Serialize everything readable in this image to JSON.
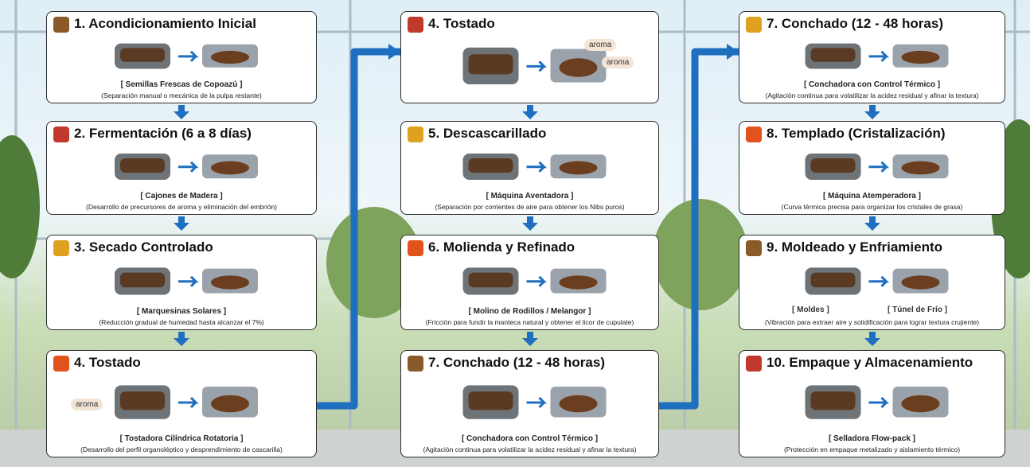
{
  "columns": [
    {
      "steps": [
        {
          "title": "1. Acondicionamiento Inicial",
          "equipment": "[ Semillas Frescas de Copoazú ]",
          "description": "(Separación manual o mecánica de la pulpa restante)"
        },
        {
          "title": "2. Fermentación (6 a 8 días)",
          "equipment": "[ Cajones de Madera ]",
          "description": "(Desarrollo de precursores de aroma y eliminación del embrión)"
        },
        {
          "title": "3. Secado Controlado",
          "equipment": "[ Marquesinas Solares ]",
          "description": "(Reducción gradual de humedad hasta alcanzar el 7%)"
        },
        {
          "title": "4. Tostado",
          "labels": [
            "aroma"
          ],
          "equipment": "[ Tostadora Cilíndrica Rotatoria ]",
          "description": "(Desarrollo del perfil organoléptico y desprendimiento de cascarilla)"
        }
      ]
    },
    {
      "steps": [
        {
          "title": "4. Tostado",
          "labels": [
            "aroma",
            "aroma"
          ]
        },
        {
          "title": "5. Descascarillado",
          "equipment": "[ Máquina Aventadora ]",
          "description": "(Separación por corrientes de aire para obtener los Nibs puros)"
        },
        {
          "title": "6. Molienda y Refinado",
          "equipment": "[ Molino de Rodillos / Melangor ]",
          "description": "(Fricción para fundir la manteca natural y obtener el licor de cupulate)"
        },
        {
          "title": "7. Conchado (12 - 48 horas)",
          "equipment": "[ Conchadora con Control Térmico ]",
          "description": "(Agitación continua para volatilizar la acidez residual y afinar la textura)"
        }
      ]
    },
    {
      "steps": [
        {
          "title": "7. Conchado (12 - 48 horas)",
          "equipment": "[ Conchadora con Control Térmico ]",
          "description": "(Agitación continua para volatilizar la acidez residual y afinar la textura)"
        },
        {
          "title": "8. Templado (Cristalización)",
          "equipment": "[ Máquina Atemperadora ]",
          "description": "(Curva térmica precisa para organizar los cristales de grasa)"
        },
        {
          "title": "9. Moldeado y Enfriamiento",
          "labels": [
            "[ Moldes ]",
            "[ Túnel de Frío ]"
          ],
          "description": "(Vibración para extraer aire y solidificación para lograr textura crujiente)"
        },
        {
          "title": "10. Empaque y Almacenamiento",
          "equipment": "[ Selladora Flow-pack ]",
          "description": "(Protección en empaque metalizado y aislamiento térmico)"
        }
      ]
    }
  ]
}
